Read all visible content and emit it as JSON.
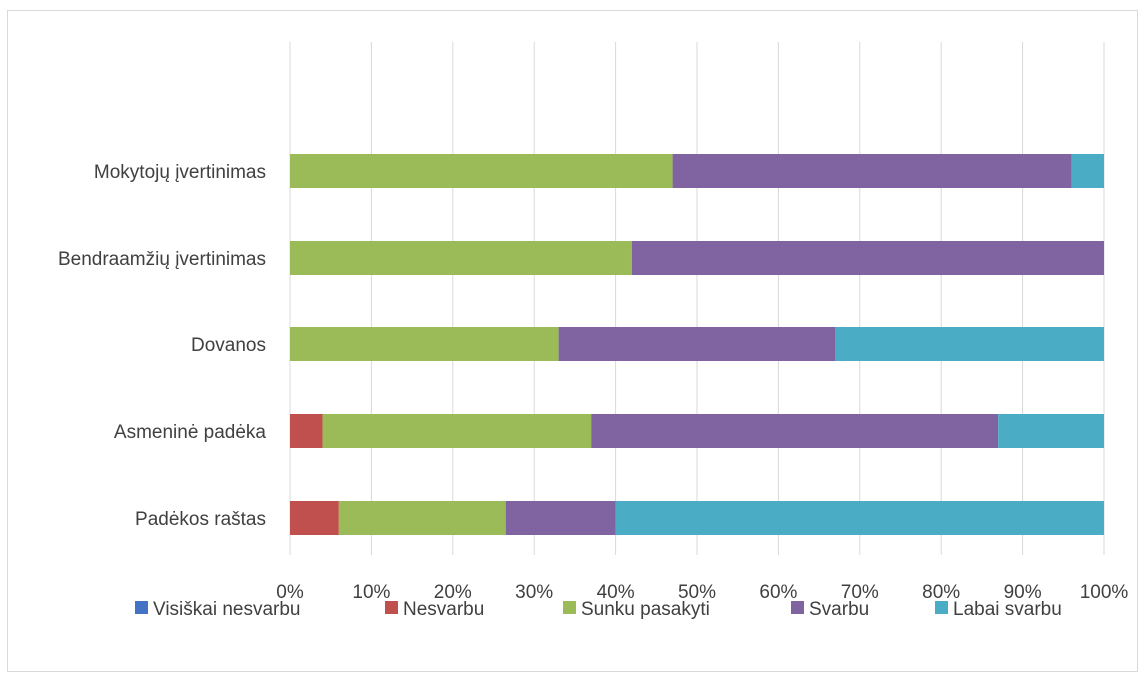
{
  "chart_data": {
    "type": "bar",
    "orientation": "horizontal",
    "stacked": "percent",
    "categories": [
      "Mokytojų įvertinimas",
      "Bendraamžių įvertinimas",
      "Dovanos",
      "Asmeninė padėka",
      "Padėkos raštas"
    ],
    "series": [
      {
        "name": "Visiškai nesvarbu",
        "color": "#4472c4",
        "values": [
          0,
          0,
          0,
          0,
          0
        ]
      },
      {
        "name": "Nesvarbu",
        "color": "#c0504d",
        "values": [
          0,
          0,
          0,
          4,
          6
        ]
      },
      {
        "name": "Sunku pasakyti",
        "color": "#9bbb59",
        "values": [
          47,
          42,
          33,
          33,
          20.5
        ]
      },
      {
        "name": "Svarbu",
        "color": "#8064a2",
        "values": [
          49,
          58,
          34,
          50,
          13.5
        ]
      },
      {
        "name": "Labai svarbu",
        "color": "#4bacc6",
        "values": [
          4,
          0,
          33,
          13,
          60
        ]
      }
    ],
    "xlim": [
      0,
      100
    ],
    "xticks": [
      "0%",
      "10%",
      "20%",
      "30%",
      "40%",
      "50%",
      "60%",
      "70%",
      "80%",
      "90%",
      "100%"
    ],
    "grid": true,
    "legend": "bottom"
  }
}
